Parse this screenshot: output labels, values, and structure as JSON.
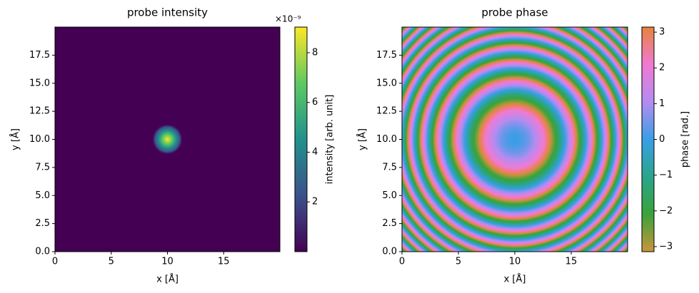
{
  "chart_data": [
    {
      "type": "heatmap",
      "title": "probe intensity",
      "xlabel": "x [Å]",
      "ylabel": "y [Å]",
      "xlim": [
        0,
        20
      ],
      "ylim": [
        0,
        20
      ],
      "xticks": [
        0,
        5,
        10,
        15
      ],
      "yticks": [
        {
          "value": 0,
          "label": "0.0"
        },
        2.5,
        {
          "value": 5,
          "label": "5.0"
        },
        7.5,
        {
          "value": 10,
          "label": "10.0"
        },
        12.5,
        {
          "value": 15,
          "label": "15.0"
        },
        17.5
      ],
      "colormap": [
        "#440154",
        "#3b528b",
        "#21918c",
        "#5ec962",
        "#fde725"
      ],
      "colorbar": {
        "label": "intensity [arb. unit]",
        "offset_text": "×10⁻⁹",
        "clim": [
          0,
          9.03
        ],
        "ticks": [
          2,
          4,
          6,
          8
        ]
      }
    },
    {
      "type": "phase",
      "title": "probe phase",
      "xlabel": "x [Å]",
      "ylabel": "y [Å]",
      "xlim": [
        0,
        20
      ],
      "ylim": [
        0,
        20
      ],
      "xticks": [
        0,
        5,
        10,
        15
      ],
      "yticks": [
        {
          "value": 0,
          "label": "0.0"
        },
        2.5,
        {
          "value": 5,
          "label": "5.0"
        },
        7.5,
        {
          "value": 10,
          "label": "10.0"
        },
        12.5,
        {
          "value": 15,
          "label": "15.0"
        },
        17.5
      ],
      "colormap": [
        "#c8963c",
        "#3aa23a",
        "#2aa58c",
        "#3a9ee6",
        "#b48cf0",
        "#f07ad2",
        "#e8823c"
      ],
      "colorbar": {
        "label": "phase [rad.]",
        "clim": [
          -3.1416,
          3.1416
        ],
        "ticks": [
          {
            "value": -3,
            "label": "−3"
          },
          {
            "value": -2,
            "label": "−2"
          },
          {
            "value": -1,
            "label": "−1"
          },
          0,
          1,
          2,
          3
        ]
      }
    }
  ]
}
